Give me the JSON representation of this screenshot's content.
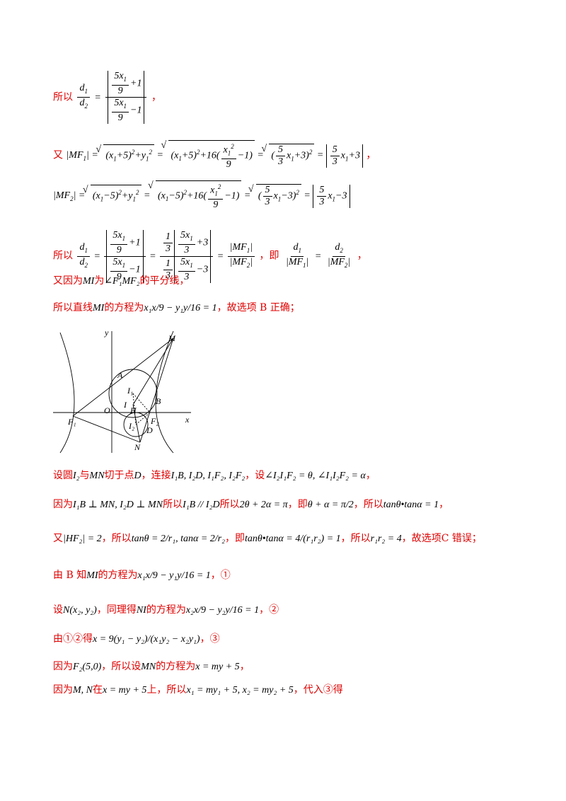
{
  "lines": {
    "l1_lead": "所以",
    "l1_tail": "，",
    "l2_lead": "又",
    "l2_tail": "，",
    "l4_lead": "所以",
    "l4_mid": "，即",
    "l4_tail": "，",
    "l5_a": "又因为",
    "l5_b": "为",
    "l5_c": "的平分线，",
    "l6_a": "所以直线",
    "l6_b": "的方程为",
    "l6_c": "，故选项 B 正确；",
    "l7_a": "设圆",
    "l7_b": "与",
    "l7_c": "切于点",
    "l7_d": "，连接",
    "l7_e": "，设",
    "l7_f": "，",
    "l8_a": "因为",
    "l8_b": "所以",
    "l8_c": "所以",
    "l8_d": "，即",
    "l8_e": "，所以",
    "l8_f": "，",
    "l9_a": "又",
    "l9_b": "，所以",
    "l9_c": "，即",
    "l9_d": "，所以",
    "l9_e": "，故选项C 错误；",
    "l10_a": "由 B 知",
    "l10_b": "的方程为",
    "l10_c": "，①",
    "l11_a": "设",
    "l11_b": "，同理得",
    "l11_c": "的方程为",
    "l11_d": "，②",
    "l12_a": "由①②得",
    "l12_b": "，③",
    "l13_a": "因为",
    "l13_b": "，所以设",
    "l13_c": "的方程为",
    "l13_d": "，",
    "l14_a": "因为",
    "l14_b": "在",
    "l14_c": "上，所以",
    "l14_d": "，代入③得"
  },
  "math": {
    "MI": "MI",
    "NI": "NI",
    "MN": "MN",
    "D": "D",
    "I2": "I₂",
    "angle_F1MF2": "∠F₁MF₂",
    "connect_list": "I₁B, I₂D, I₁F₂, I₂F₂",
    "angles": "∠I₂I₁F₂ = θ, ∠I₁I₂F₂ = α",
    "perp": "I₁B ⊥ MN, I₂D ⊥ MN",
    "parallel": "I₁B // I₂D",
    "sum_pi": "2θ + 2α = π",
    "theta_alpha": "θ + α = π/2",
    "tan_prod": "tanθ•tanα = 1",
    "HF2": "|HF₂| = 2",
    "tans": "tanθ = 2/r₁, tanα = 2/r₂",
    "tan_prod2": "tanθ•tanα = 4/(r₁r₂) = 1",
    "r1r2": "r₁r₂ = 4",
    "eq_MI": "x₁x/9 − y₁y/16 = 1",
    "N_pt": "N(x₂, y₂)",
    "eq_NI": "x₂x/9 − y₂y/16 = 1",
    "x_eq": "x = 9(y₁ − y₂)/(x₁y₂ − x₂y₁)",
    "F2": "F₂(5,0)",
    "MN_eq": "x = my + 5",
    "MN_pts": "M, N",
    "subst": "x₁ = my₁ + 5, x₂ = my₂ + 5"
  },
  "figure": {
    "labels": {
      "y": "y",
      "x": "x",
      "M": "M",
      "A": "A",
      "I1": "I₁",
      "B": "B",
      "I": "I",
      "H": "H",
      "O": "O",
      "F1": "F₁",
      "F2": "F₂",
      "I2": "I₂",
      "D": "D",
      "N": "N"
    }
  }
}
